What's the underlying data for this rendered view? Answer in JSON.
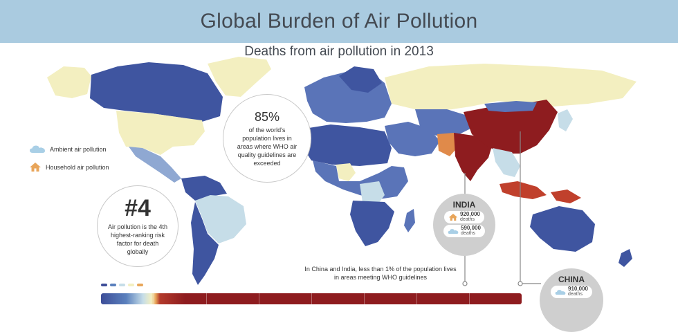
{
  "header": {
    "title": "Global Burden of Air Pollution"
  },
  "subtitle": "Deaths from air pollution in 2013",
  "legend": {
    "ambient_label": "Ambient air pollution",
    "ambient_icon": "cloud-icon",
    "household_label": "Household air pollution",
    "household_icon": "house-icon"
  },
  "stat_85": {
    "value": "85%",
    "text": "of the world's population lives in areas where WHO air quality guidelines are exceeded"
  },
  "stat_4": {
    "value": "#4",
    "text": "Air pollution is the 4th highest-ranking risk factor for death globally"
  },
  "india": {
    "name": "INDIA",
    "household_deaths": "920,000",
    "ambient_deaths": "590,000",
    "unit": "deaths"
  },
  "china": {
    "name": "CHINA",
    "ambient_deaths": "910,000",
    "unit": "deaths"
  },
  "note": "In China and India, less than 1% of the population lives in areas meeting WHO guidelines",
  "colors": {
    "banner": "#aacbe0",
    "dark_blue": "#3d4e98",
    "mid_blue": "#5a80bd",
    "light_blue": "#c6dde8",
    "pale_yellow": "#f3efc0",
    "orange": "#e08a4a",
    "dark_red": "#8e1c1f",
    "red": "#c0402c"
  }
}
